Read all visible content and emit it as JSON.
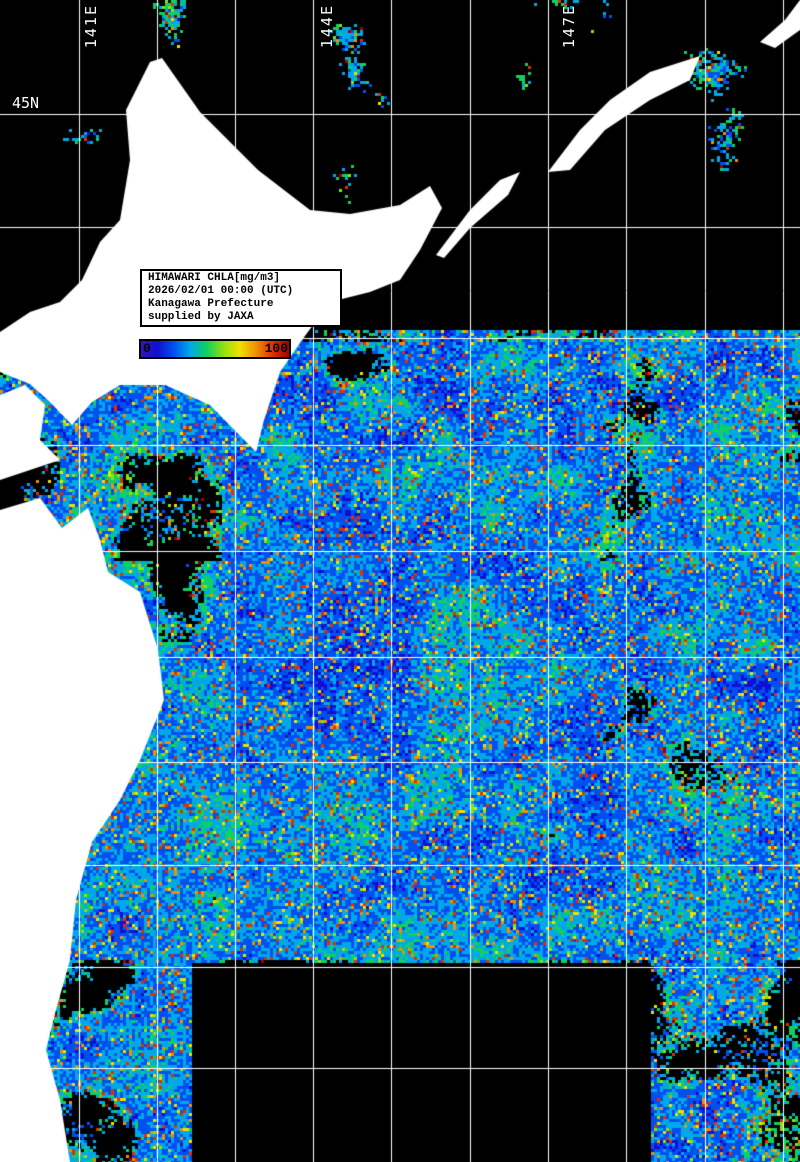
{
  "map": {
    "legend_box": {
      "lines": [
        "HIMAWARI CHLA[mg/m3]",
        "2026/02/01 00:00 (UTC)",
        "Kanagawa Prefecture",
        "supplied by JAXA"
      ]
    },
    "colorbar": {
      "min_label": "0",
      "max_label": "100",
      "colors": [
        "#3a10b8",
        "#1010d0",
        "#0050f0",
        "#00a8e8",
        "#10d060",
        "#90e010",
        "#f0e000",
        "#f09000",
        "#e03000",
        "#a00000"
      ]
    },
    "grid_labels": {
      "lon": [
        "141E",
        "144E",
        "147E"
      ],
      "lat": [
        "45N"
      ]
    },
    "colors": {
      "land": "#ffffff",
      "cloud_or_nodata": "#000000",
      "grid": "#ffffff"
    }
  }
}
